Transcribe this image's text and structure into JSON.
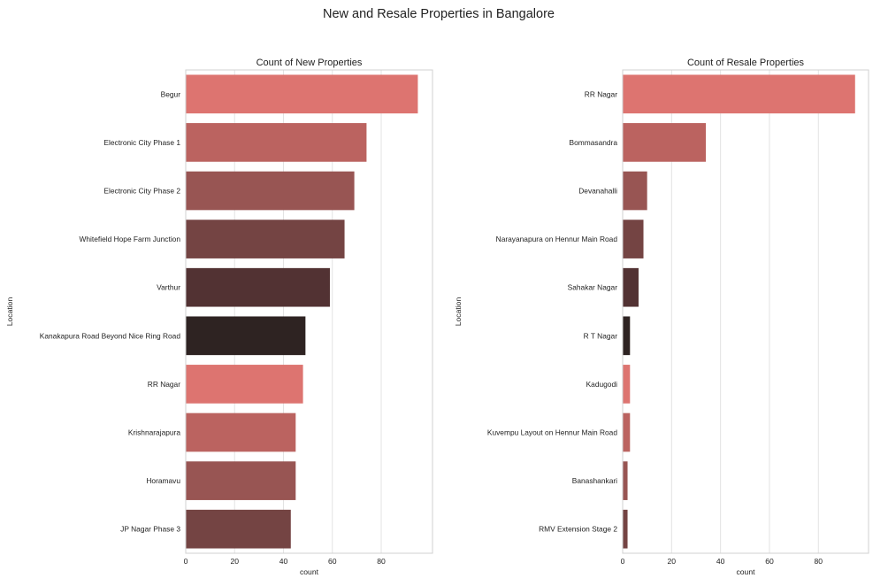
{
  "title": "New and Resale Properties in Bangalore",
  "chart_data": [
    {
      "type": "bar",
      "orientation": "horizontal",
      "title": "Count of New Properties",
      "xlabel": "count",
      "ylabel": "Location",
      "categories": [
        "Begur",
        "Electronic City Phase 1",
        "Electronic City Phase 2",
        "Whitefield Hope Farm Junction",
        "Varthur",
        "Kanakapura Road Beyond Nice Ring Road",
        "RR Nagar",
        "Krishnarajapura",
        "Horamavu",
        "JP Nagar Phase 3"
      ],
      "values": [
        95,
        74,
        69,
        65,
        59,
        49,
        48,
        45,
        45,
        43
      ],
      "xlim": [
        0,
        101
      ],
      "xticks": [
        "0",
        "20",
        "40",
        "60",
        "80"
      ],
      "grid": "vertical",
      "colors": [
        "#dd7470",
        "#bb6360",
        "#985553",
        "#744443",
        "#523233",
        "#2e2322",
        "#dd7470",
        "#bb6360",
        "#985553",
        "#744443"
      ]
    },
    {
      "type": "bar",
      "orientation": "horizontal",
      "title": "Count of Resale Properties",
      "xlabel": "count",
      "ylabel": "Location",
      "categories": [
        "RR Nagar",
        "Bommasandra",
        "Devanahalli",
        "Narayanapura on Hennur Main Road",
        "Sahakar Nagar",
        "R T  Nagar",
        "Kadugodi",
        "Kuvempu Layout on Hennur Main Road",
        "Banashankari",
        "RMV Extension Stage 2"
      ],
      "values": [
        95,
        34,
        10,
        8.5,
        6.5,
        3,
        3,
        3,
        2,
        2
      ],
      "xlim": [
        0,
        100.5
      ],
      "xticks": [
        "0",
        "20",
        "40",
        "60",
        "80"
      ],
      "grid": "vertical",
      "colors": [
        "#dd7470",
        "#bb6360",
        "#985553",
        "#744443",
        "#523233",
        "#2e2322",
        "#dd7470",
        "#bb6360",
        "#985553",
        "#744443"
      ]
    }
  ]
}
